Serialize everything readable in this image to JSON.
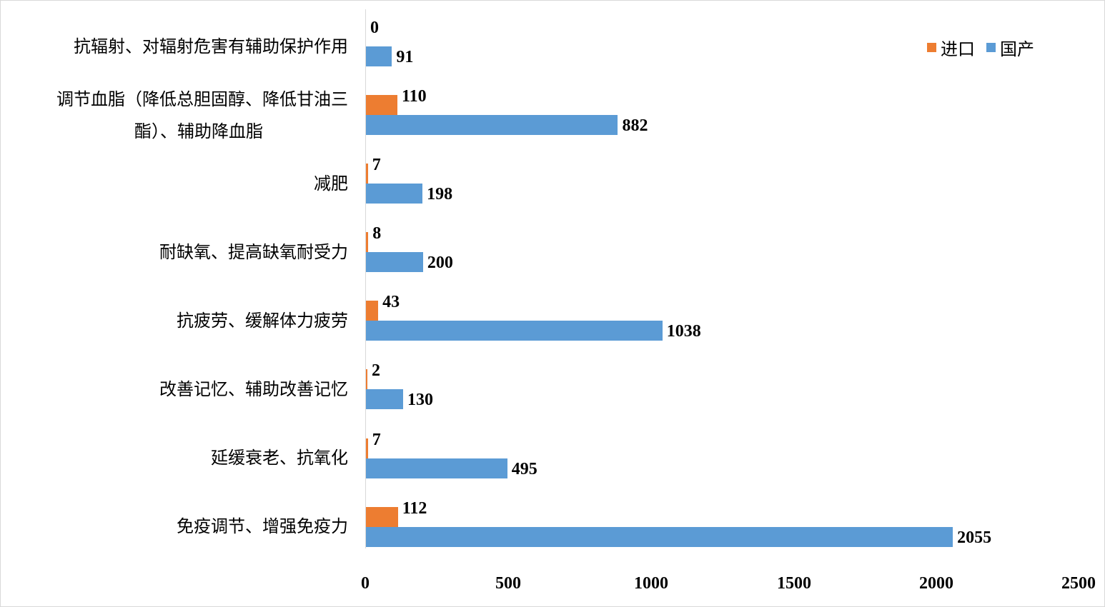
{
  "chart_data": {
    "type": "bar",
    "orientation": "horizontal",
    "title": "",
    "xlabel": "",
    "ylabel": "",
    "xlim": [
      0,
      2500
    ],
    "x_ticks": [
      "0",
      "500",
      "1000",
      "1500",
      "2000",
      "2500"
    ],
    "grid": false,
    "legend_position": "top-right",
    "categories": [
      "抗辐射、对辐射危害有辅助保护作用",
      "调节血脂（降低总胆固醇、降低甘油三酯）、辅助降血脂",
      "减肥",
      "耐缺氧、提高缺氧耐受力",
      "抗疲劳、缓解体力疲劳",
      "改善记忆、辅助改善记忆",
      "延缓衰老、抗氧化",
      "免疫调节、增强免疫力"
    ],
    "series": [
      {
        "name": "进口",
        "color": "#ed7d31",
        "values": [
          0,
          110,
          7,
          8,
          43,
          2,
          7,
          112
        ]
      },
      {
        "name": "国产",
        "color": "#5b9bd5",
        "values": [
          91,
          882,
          198,
          200,
          1038,
          130,
          495,
          2055
        ]
      }
    ],
    "data_labels": true
  },
  "labels": {
    "cat0": "抗辐射、对辐射危害有辅助保护作用",
    "cat1_line1": "调节血脂（降低总胆固醇、降低甘油三",
    "cat1_line2": "酯）、辅助降血脂",
    "cat2": "减肥",
    "cat3": "耐缺氧、提高缺氧耐受力",
    "cat4": "抗疲劳、缓解体力疲劳",
    "cat5": "改善记忆、辅助改善记忆",
    "cat6": "延缓衰老、抗氧化",
    "cat7": "免疫调节、增强免疫力"
  },
  "values_text": {
    "imp": [
      "0",
      "110",
      "7",
      "8",
      "43",
      "2",
      "7",
      "112"
    ],
    "dom": [
      "91",
      "882",
      "198",
      "200",
      "1038",
      "130",
      "495",
      "2055"
    ]
  },
  "ticks": [
    "0",
    "500",
    "1000",
    "1500",
    "2000",
    "2500"
  ],
  "legend": {
    "import": "进口",
    "domestic": "国产"
  }
}
